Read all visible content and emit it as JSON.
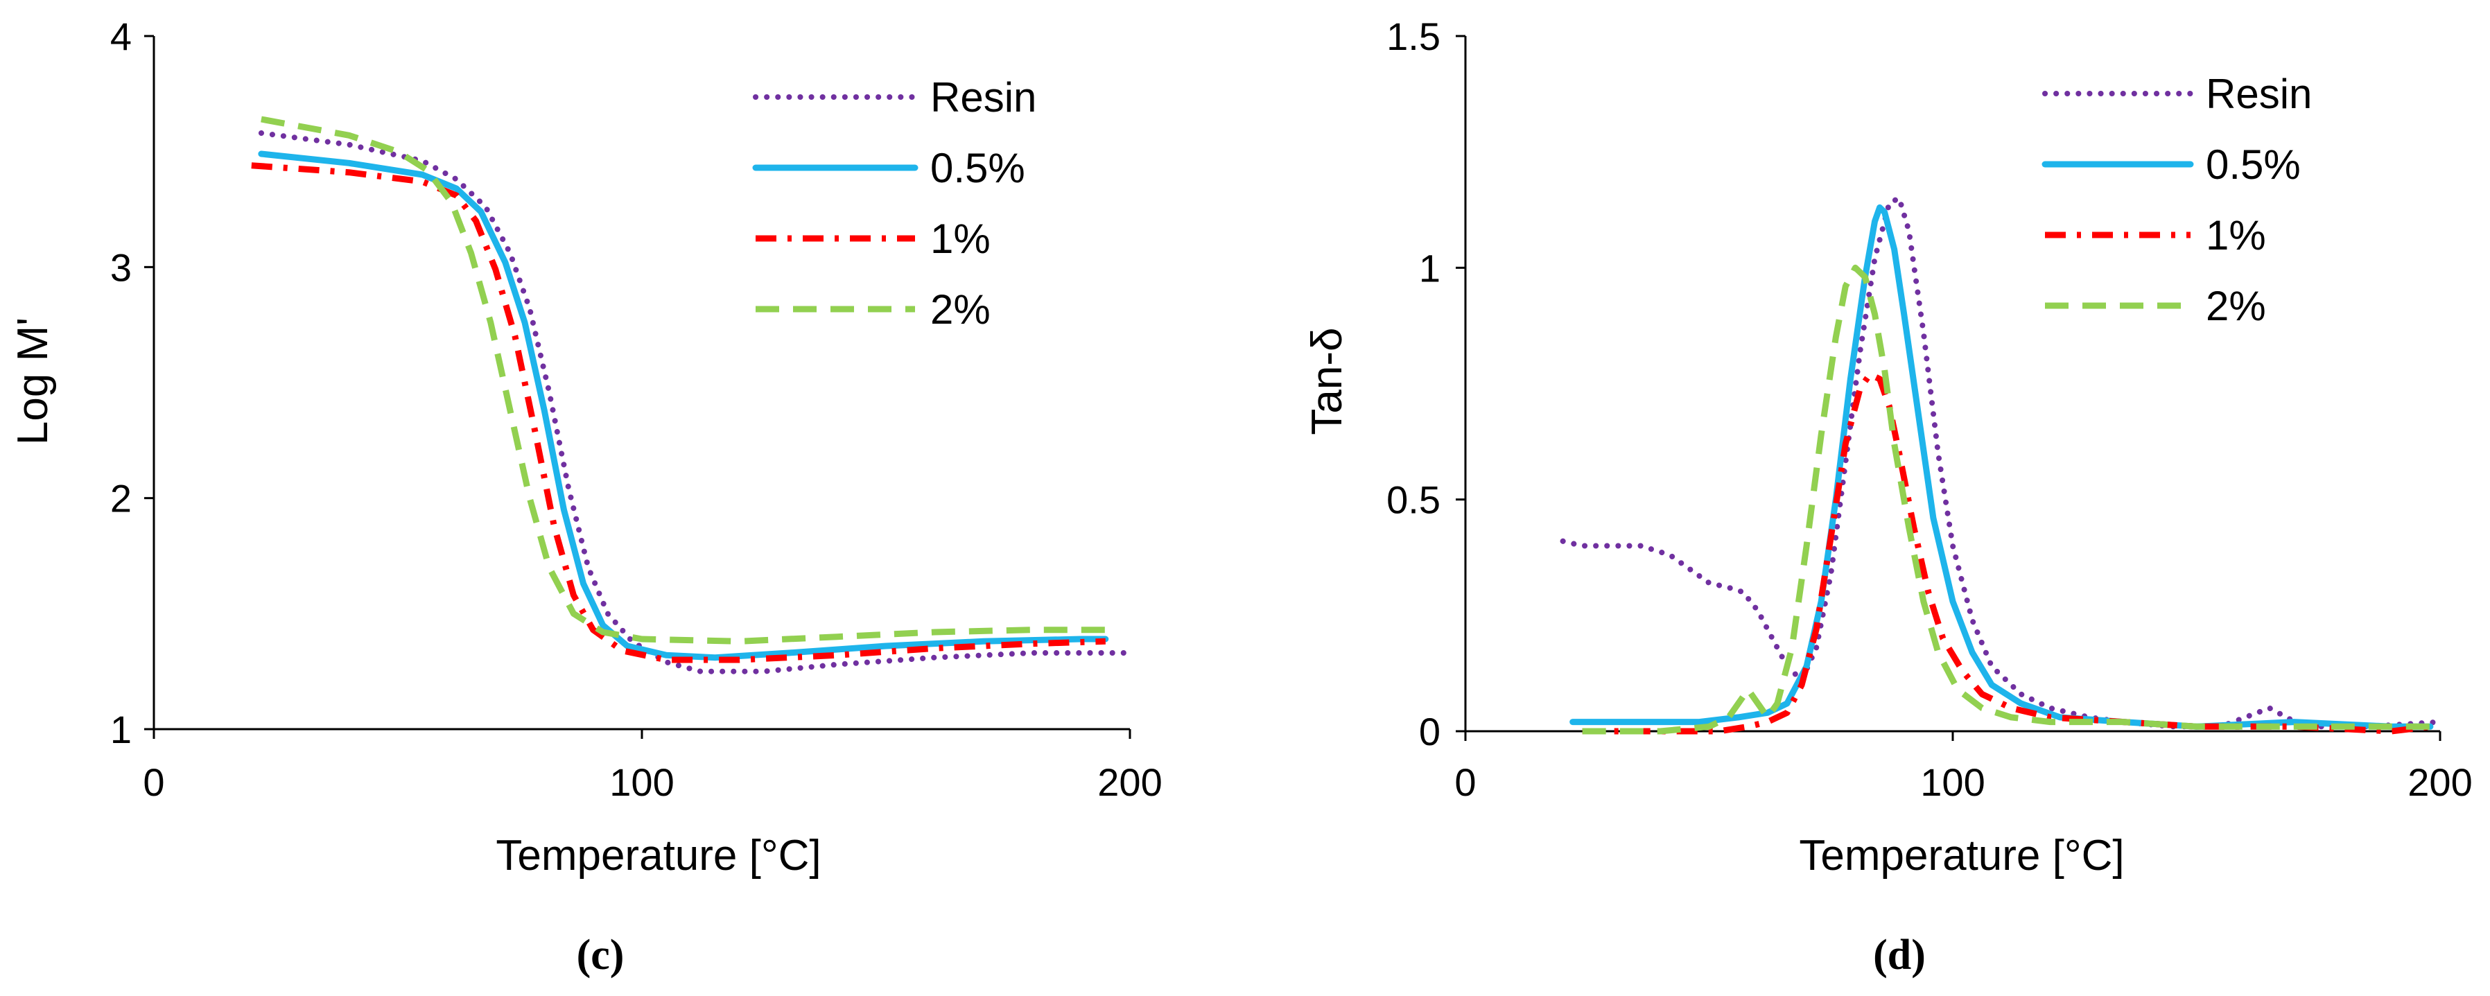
{
  "chart_data": [
    {
      "type": "line",
      "panel_label": "(c)",
      "xlabel": "Temperature [°C]",
      "ylabel": "Log M'",
      "xlim": [
        0,
        200
      ],
      "ylim": [
        1,
        4
      ],
      "xticks": [
        0,
        100,
        200
      ],
      "yticks": [
        1,
        2,
        3,
        4
      ],
      "grid": false,
      "legend_position": "top-right",
      "series": [
        {
          "name": "Resin",
          "color": "#7030A0",
          "style": "dotted",
          "points": [
            [
              22,
              3.58
            ],
            [
              40,
              3.53
            ],
            [
              55,
              3.46
            ],
            [
              62,
              3.38
            ],
            [
              68,
              3.26
            ],
            [
              73,
              3.06
            ],
            [
              77,
              2.82
            ],
            [
              81,
              2.46
            ],
            [
              85,
              2.04
            ],
            [
              89,
              1.7
            ],
            [
              93,
              1.5
            ],
            [
              98,
              1.38
            ],
            [
              105,
              1.29
            ],
            [
              112,
              1.25
            ],
            [
              125,
              1.25
            ],
            [
              140,
              1.28
            ],
            [
              160,
              1.31
            ],
            [
              180,
              1.33
            ],
            [
              200,
              1.33
            ]
          ]
        },
        {
          "name": "0.5%",
          "color": "#1EB4EB",
          "style": "solid",
          "points": [
            [
              22,
              3.49
            ],
            [
              40,
              3.45
            ],
            [
              55,
              3.4
            ],
            [
              62,
              3.34
            ],
            [
              67,
              3.24
            ],
            [
              72,
              3.02
            ],
            [
              76,
              2.76
            ],
            [
              80,
              2.38
            ],
            [
              84,
              1.95
            ],
            [
              88,
              1.63
            ],
            [
              92,
              1.45
            ],
            [
              97,
              1.36
            ],
            [
              105,
              1.32
            ],
            [
              115,
              1.31
            ],
            [
              130,
              1.33
            ],
            [
              150,
              1.36
            ],
            [
              170,
              1.38
            ],
            [
              190,
              1.39
            ],
            [
              195,
              1.39
            ]
          ]
        },
        {
          "name": "1%",
          "color": "#FF0000",
          "style": "dashdot",
          "points": [
            [
              20,
              3.44
            ],
            [
              40,
              3.41
            ],
            [
              55,
              3.37
            ],
            [
              62,
              3.31
            ],
            [
              66,
              3.2
            ],
            [
              70,
              2.99
            ],
            [
              74,
              2.7
            ],
            [
              78,
              2.3
            ],
            [
              82,
              1.88
            ],
            [
              86,
              1.58
            ],
            [
              90,
              1.43
            ],
            [
              96,
              1.34
            ],
            [
              105,
              1.3
            ],
            [
              120,
              1.3
            ],
            [
              140,
              1.32
            ],
            [
              160,
              1.35
            ],
            [
              180,
              1.37
            ],
            [
              195,
              1.38
            ]
          ]
        },
        {
          "name": "2%",
          "color": "#92D050",
          "style": "dashed",
          "points": [
            [
              22,
              3.64
            ],
            [
              40,
              3.57
            ],
            [
              50,
              3.5
            ],
            [
              56,
              3.42
            ],
            [
              61,
              3.28
            ],
            [
              65,
              3.06
            ],
            [
              69,
              2.76
            ],
            [
              73,
              2.38
            ],
            [
              77,
              2.0
            ],
            [
              81,
              1.7
            ],
            [
              86,
              1.5
            ],
            [
              92,
              1.42
            ],
            [
              100,
              1.39
            ],
            [
              120,
              1.38
            ],
            [
              140,
              1.4
            ],
            [
              160,
              1.42
            ],
            [
              180,
              1.43
            ],
            [
              195,
              1.43
            ]
          ]
        }
      ]
    },
    {
      "type": "line",
      "panel_label": "(d)",
      "xlabel": "Temperature [°C]",
      "ylabel": "Tan-δ",
      "xlim": [
        0,
        200
      ],
      "ylim": [
        0,
        1.5
      ],
      "xticks": [
        0,
        100,
        200
      ],
      "yticks": [
        0,
        0.5,
        1,
        1.5
      ],
      "ytick_labels": [
        "0",
        "0.5",
        "1",
        "1.5"
      ],
      "grid": false,
      "legend_position": "top-right",
      "series": [
        {
          "name": "Resin",
          "color": "#7030A0",
          "style": "dotted",
          "points": [
            [
              20,
              0.41
            ],
            [
              24,
              0.4
            ],
            [
              30,
              0.4
            ],
            [
              36,
              0.4
            ],
            [
              42,
              0.38
            ],
            [
              46,
              0.35
            ],
            [
              50,
              0.32
            ],
            [
              54,
              0.31
            ],
            [
              57,
              0.3
            ],
            [
              60,
              0.26
            ],
            [
              63,
              0.2
            ],
            [
              66,
              0.14
            ],
            [
              69,
              0.11
            ],
            [
              72,
              0.18
            ],
            [
              75,
              0.34
            ],
            [
              78,
              0.58
            ],
            [
              81,
              0.82
            ],
            [
              84,
              1.02
            ],
            [
              87,
              1.14
            ],
            [
              89,
              1.15
            ],
            [
              91,
              1.08
            ],
            [
              94,
              0.86
            ],
            [
              97,
              0.6
            ],
            [
              100,
              0.4
            ],
            [
              104,
              0.24
            ],
            [
              108,
              0.14
            ],
            [
              114,
              0.08
            ],
            [
              120,
              0.05
            ],
            [
              128,
              0.03
            ],
            [
              135,
              0.02
            ],
            [
              145,
              0.01
            ],
            [
              155,
              0.01
            ],
            [
              165,
              0.05
            ],
            [
              172,
              0.01
            ],
            [
              185,
              0.01
            ],
            [
              200,
              0.02
            ]
          ]
        },
        {
          "name": "0.5%",
          "color": "#1EB4EB",
          "style": "solid",
          "points": [
            [
              22,
              0.02
            ],
            [
              35,
              0.02
            ],
            [
              48,
              0.02
            ],
            [
              56,
              0.03
            ],
            [
              62,
              0.04
            ],
            [
              66,
              0.06
            ],
            [
              70,
              0.14
            ],
            [
              73,
              0.28
            ],
            [
              76,
              0.5
            ],
            [
              79,
              0.76
            ],
            [
              82,
              0.98
            ],
            [
              84,
              1.1
            ],
            [
              85,
              1.13
            ],
            [
              86,
              1.12
            ],
            [
              88,
              1.04
            ],
            [
              90,
              0.9
            ],
            [
              93,
              0.68
            ],
            [
              96,
              0.46
            ],
            [
              100,
              0.28
            ],
            [
              104,
              0.17
            ],
            [
              108,
              0.1
            ],
            [
              114,
              0.06
            ],
            [
              122,
              0.03
            ],
            [
              135,
              0.02
            ],
            [
              150,
              0.01
            ],
            [
              170,
              0.02
            ],
            [
              190,
              0.01
            ],
            [
              198,
              0.01
            ]
          ]
        },
        {
          "name": "1%",
          "color": "#FF0000",
          "style": "dashdot",
          "points": [
            [
              24,
              0.0
            ],
            [
              40,
              0.0
            ],
            [
              52,
              0.0
            ],
            [
              58,
              0.01
            ],
            [
              62,
              0.02
            ],
            [
              66,
              0.04
            ],
            [
              69,
              0.1
            ],
            [
              72,
              0.22
            ],
            [
              75,
              0.42
            ],
            [
              78,
              0.62
            ],
            [
              81,
              0.74
            ],
            [
              83,
              0.77
            ],
            [
              85,
              0.76
            ],
            [
              87,
              0.7
            ],
            [
              89,
              0.6
            ],
            [
              92,
              0.44
            ],
            [
              95,
              0.3
            ],
            [
              98,
              0.2
            ],
            [
              102,
              0.13
            ],
            [
              106,
              0.08
            ],
            [
              112,
              0.05
            ],
            [
              120,
              0.03
            ],
            [
              135,
              0.02
            ],
            [
              150,
              0.01
            ],
            [
              170,
              0.01
            ],
            [
              190,
              0.0
            ],
            [
              198,
              0.01
            ]
          ]
        },
        {
          "name": "2%",
          "color": "#92D050",
          "style": "dashed",
          "points": [
            [
              24,
              0.0
            ],
            [
              40,
              0.0
            ],
            [
              50,
              0.01
            ],
            [
              54,
              0.03
            ],
            [
              56,
              0.06
            ],
            [
              58,
              0.09
            ],
            [
              60,
              0.06
            ],
            [
              62,
              0.03
            ],
            [
              64,
              0.06
            ],
            [
              67,
              0.18
            ],
            [
              70,
              0.4
            ],
            [
              73,
              0.64
            ],
            [
              76,
              0.85
            ],
            [
              78,
              0.96
            ],
            [
              80,
              1.0
            ],
            [
              82,
              0.98
            ],
            [
              84,
              0.9
            ],
            [
              86,
              0.78
            ],
            [
              88,
              0.62
            ],
            [
              91,
              0.44
            ],
            [
              94,
              0.28
            ],
            [
              97,
              0.17
            ],
            [
              101,
              0.09
            ],
            [
              106,
              0.05
            ],
            [
              112,
              0.03
            ],
            [
              120,
              0.02
            ],
            [
              135,
              0.02
            ],
            [
              150,
              0.01
            ],
            [
              170,
              0.01
            ],
            [
              190,
              0.01
            ],
            [
              198,
              0.01
            ]
          ]
        }
      ]
    }
  ]
}
